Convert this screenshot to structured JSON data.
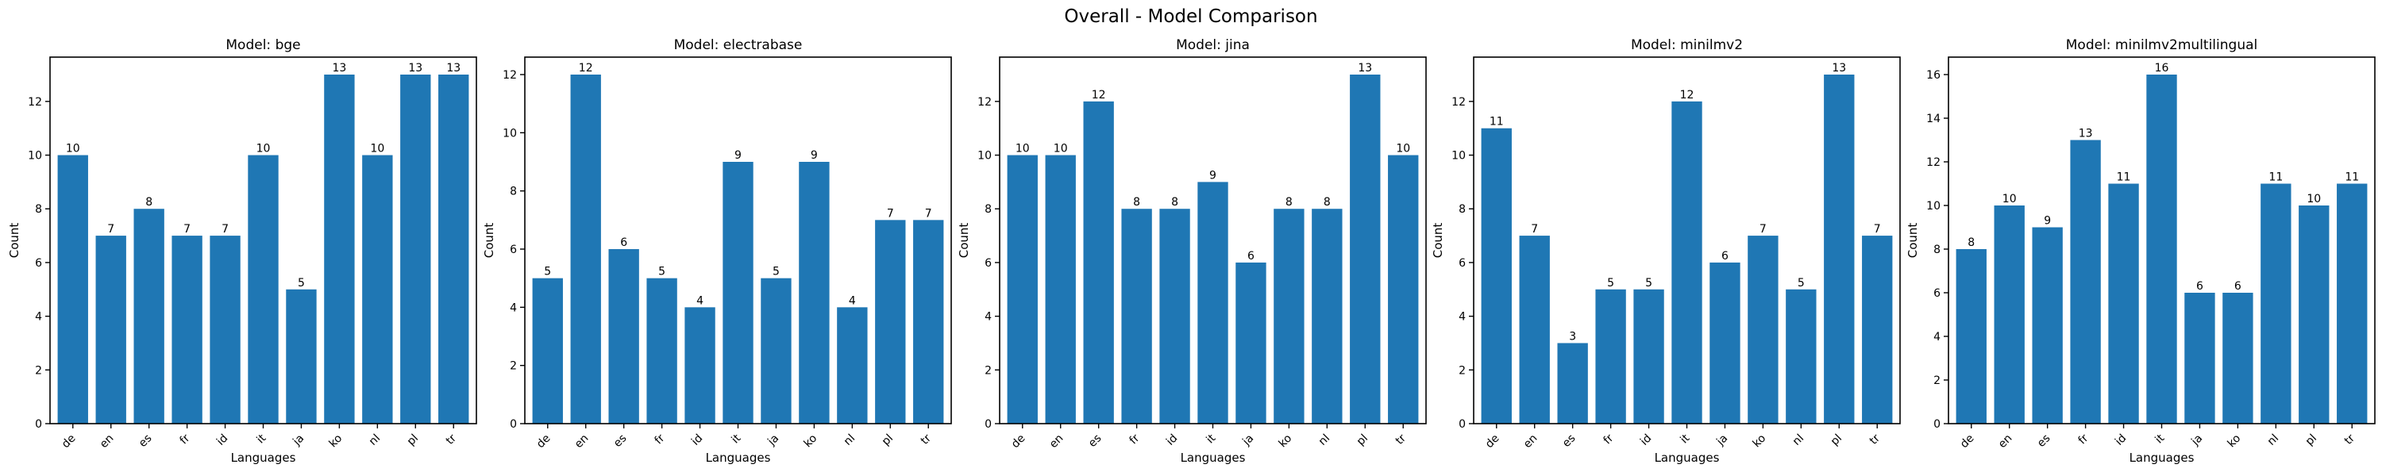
{
  "figure": {
    "suptitle": "Overall - Model Comparison"
  },
  "colors": {
    "bar": "#1f77b4"
  },
  "chart_data": [
    {
      "type": "bar",
      "title": "Model: bge",
      "xlabel": "Languages",
      "ylabel": "Count",
      "categories": [
        "de",
        "en",
        "es",
        "fr",
        "id",
        "it",
        "ja",
        "ko",
        "nl",
        "pl",
        "tr"
      ],
      "values": [
        10,
        7,
        8,
        7,
        7,
        10,
        5,
        13,
        10,
        13,
        13
      ],
      "ylim": [
        0,
        13.65
      ],
      "yticks": [
        0,
        2,
        4,
        6,
        8,
        10,
        12
      ],
      "grid": false,
      "legend": "none"
    },
    {
      "type": "bar",
      "title": "Model: electrabase",
      "xlabel": "Languages",
      "ylabel": "Count",
      "categories": [
        "de",
        "en",
        "es",
        "fr",
        "id",
        "it",
        "ja",
        "ko",
        "nl",
        "pl",
        "tr"
      ],
      "values": [
        5,
        12,
        6,
        5,
        4,
        9,
        5,
        9,
        4,
        7,
        7
      ],
      "ylim": [
        0,
        12.6
      ],
      "yticks": [
        0,
        2,
        4,
        6,
        8,
        10,
        12
      ],
      "grid": false,
      "legend": "none"
    },
    {
      "type": "bar",
      "title": "Model: jina",
      "xlabel": "Languages",
      "ylabel": "Count",
      "categories": [
        "de",
        "en",
        "es",
        "fr",
        "id",
        "it",
        "ja",
        "ko",
        "nl",
        "pl",
        "tr"
      ],
      "values": [
        10,
        10,
        12,
        8,
        8,
        9,
        6,
        8,
        8,
        13,
        10
      ],
      "ylim": [
        0,
        13.65
      ],
      "yticks": [
        0,
        2,
        4,
        6,
        8,
        10,
        12
      ],
      "grid": false,
      "legend": "none"
    },
    {
      "type": "bar",
      "title": "Model: minilmv2",
      "xlabel": "Languages",
      "ylabel": "Count",
      "categories": [
        "de",
        "en",
        "es",
        "fr",
        "id",
        "it",
        "ja",
        "ko",
        "nl",
        "pl",
        "tr"
      ],
      "values": [
        11,
        7,
        3,
        5,
        5,
        12,
        6,
        7,
        5,
        13,
        7
      ],
      "ylim": [
        0,
        13.65
      ],
      "yticks": [
        0,
        2,
        4,
        6,
        8,
        10,
        12
      ],
      "grid": false,
      "legend": "none"
    },
    {
      "type": "bar",
      "title": "Model: minilmv2multilingual",
      "xlabel": "Languages",
      "ylabel": "Count",
      "categories": [
        "de",
        "en",
        "es",
        "fr",
        "id",
        "it",
        "ja",
        "ko",
        "nl",
        "pl",
        "tr"
      ],
      "values": [
        8,
        10,
        9,
        13,
        11,
        16,
        6,
        6,
        11,
        10,
        11
      ],
      "ylim": [
        0,
        16.8
      ],
      "yticks": [
        0,
        2,
        4,
        6,
        8,
        10,
        12,
        14,
        16
      ],
      "grid": false,
      "legend": "none"
    }
  ]
}
